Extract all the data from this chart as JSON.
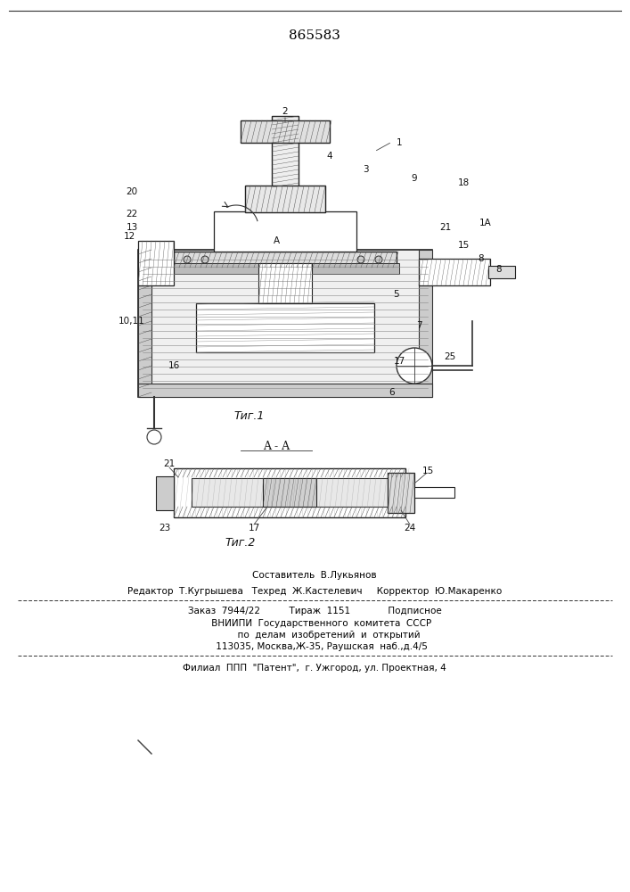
{
  "patent_number": "865583",
  "fig1_caption": "Τиг.1",
  "fig2_caption": "Τиг.2",
  "fig2_title": "A - A",
  "footer_line1": "Составитель  В.Лукьянов",
  "footer_line2": "Редактор  Т.Кугрышева   Техред  Ж.Кастелевич     Корректор  Ю.Макаренко",
  "footer_line3": "Заказ  7944/22          Тираж  1151             Подписное",
  "footer_line4": "     ВНИИПИ  Государственного  комитета  СССР",
  "footer_line5": "          по  делам  изобретений  и  открытий",
  "footer_line6": "     113035, Москва,Ж-35, Раушская  наб.,д.4/5",
  "footer_line7": "Филиал  ППП  \"Патент\",  г. Ужгород, ул. Проектная, 4",
  "bg_color": "#ffffff",
  "text_color": "#000000",
  "border_color": "#555555"
}
